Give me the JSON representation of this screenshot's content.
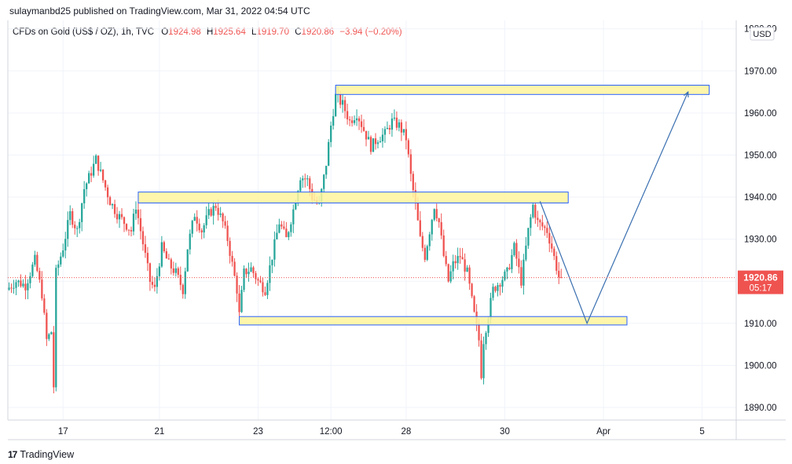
{
  "header": {
    "publisher": "sulaymanbd25 published on TradingView.com, Mar 31, 2022 04:54 UTC",
    "symbol": "CFDs on Gold (US$ / OZ), 1h, TVC",
    "ohlc": [
      {
        "key": "O",
        "value": "1924.98"
      },
      {
        "key": "H",
        "value": "1925.64"
      },
      {
        "key": "L",
        "value": "1919.70"
      },
      {
        "key": "C",
        "value": "1920.86"
      }
    ],
    "change": "−3.94 (−0.20%)"
  },
  "price_axis": {
    "currency": "USD",
    "current_price": "1920.86",
    "countdown": "05:17"
  },
  "footer": {
    "logo_text": "TradingView",
    "logo_mark": "17"
  },
  "colors": {
    "up": "#26a69a",
    "down": "#ef5350",
    "zone_fill": "#fff59d",
    "zone_stroke": "#2962ff",
    "projection": "#3a6fb0",
    "grid": "#f0f3fa"
  },
  "chart_data": {
    "type": "candlestick",
    "title": "",
    "xlabel": "",
    "ylabel": "",
    "ylim": [
      1887,
      1982
    ],
    "y_ticks": [
      1890,
      1900,
      1910,
      1920,
      1930,
      1940,
      1950,
      1960,
      1970,
      1980
    ],
    "y_tick_labels": [
      "1890.00",
      "1900.00",
      "1910.00",
      "1920.00",
      "1930.00",
      "1940.00",
      "1950.00",
      "1960.00",
      "1970.00",
      "1980.00"
    ],
    "x_ticks": [
      {
        "label": "17",
        "bar": 23
      },
      {
        "label": "21",
        "bar": 64
      },
      {
        "label": "23",
        "bar": 106
      },
      {
        "label": "12:00",
        "bar": 137
      },
      {
        "label": "28",
        "bar": 169
      },
      {
        "label": "30",
        "bar": 211
      },
      {
        "label": "Apr",
        "bar": 253
      },
      {
        "label": "5",
        "bar": 295
      }
    ],
    "bar_count_visible": 310,
    "price_path": [
      [
        0,
        1918
      ],
      [
        4,
        1920
      ],
      [
        8,
        1919
      ],
      [
        12,
        1925
      ],
      [
        15,
        1917
      ],
      [
        17,
        1906
      ],
      [
        19,
        1908
      ],
      [
        20,
        1895
      ],
      [
        21,
        1922
      ],
      [
        24,
        1928
      ],
      [
        27,
        1936
      ],
      [
        30,
        1932
      ],
      [
        33,
        1942
      ],
      [
        36,
        1946
      ],
      [
        38,
        1949
      ],
      [
        41,
        1944
      ],
      [
        44,
        1939
      ],
      [
        47,
        1936
      ],
      [
        50,
        1934
      ],
      [
        53,
        1932
      ],
      [
        55,
        1938
      ],
      [
        57,
        1932
      ],
      [
        59,
        1926
      ],
      [
        61,
        1920
      ],
      [
        63,
        1918
      ],
      [
        66,
        1928
      ],
      [
        69,
        1924
      ],
      [
        72,
        1922
      ],
      [
        75,
        1918
      ],
      [
        77,
        1928
      ],
      [
        80,
        1936
      ],
      [
        83,
        1932
      ],
      [
        86,
        1936
      ],
      [
        89,
        1938
      ],
      [
        92,
        1934
      ],
      [
        94,
        1930
      ],
      [
        96,
        1924
      ],
      [
        98,
        1918
      ],
      [
        99,
        1912
      ],
      [
        101,
        1922
      ],
      [
        104,
        1923
      ],
      [
        107,
        1920
      ],
      [
        110,
        1918
      ],
      [
        113,
        1926
      ],
      [
        116,
        1934
      ],
      [
        119,
        1930
      ],
      [
        122,
        1937
      ],
      [
        125,
        1945
      ],
      [
        128,
        1944
      ],
      [
        130,
        1940
      ],
      [
        133,
        1938
      ],
      [
        136,
        1948
      ],
      [
        138,
        1957
      ],
      [
        140,
        1964
      ],
      [
        143,
        1962
      ],
      [
        146,
        1958
      ],
      [
        149,
        1960
      ],
      [
        152,
        1956
      ],
      [
        155,
        1952
      ],
      [
        158,
        1954
      ],
      [
        161,
        1955
      ],
      [
        164,
        1958
      ],
      [
        167,
        1957
      ],
      [
        170,
        1954
      ],
      [
        172,
        1945
      ],
      [
        174,
        1938
      ],
      [
        176,
        1930
      ],
      [
        178,
        1926
      ],
      [
        180,
        1932
      ],
      [
        182,
        1938
      ],
      [
        184,
        1934
      ],
      [
        186,
        1926
      ],
      [
        188,
        1920
      ],
      [
        190,
        1924
      ],
      [
        193,
        1926
      ],
      [
        196,
        1922
      ],
      [
        199,
        1912
      ],
      [
        201,
        1906
      ],
      [
        202,
        1898
      ],
      [
        203,
        1906
      ],
      [
        205,
        1912
      ],
      [
        207,
        1918
      ],
      [
        210,
        1920
      ],
      [
        213,
        1922
      ],
      [
        216,
        1928
      ],
      [
        219,
        1920
      ],
      [
        222,
        1932
      ],
      [
        224,
        1938
      ],
      [
        226,
        1934
      ],
      [
        228,
        1933
      ],
      [
        230,
        1932
      ],
      [
        232,
        1928
      ],
      [
        235,
        1921
      ]
    ],
    "zones": [
      {
        "x_start_bar": 139,
        "x_end_bar": 298,
        "y_low": 1964.4,
        "y_high": 1966.6
      },
      {
        "x_start_bar": 55,
        "x_end_bar": 238,
        "y_low": 1938.6,
        "y_high": 1941.2
      },
      {
        "x_start_bar": 98,
        "x_end_bar": 263,
        "y_low": 1909.6,
        "y_high": 1911.6
      }
    ],
    "projection_path": [
      [
        226,
        1939
      ],
      [
        246,
        1910
      ],
      [
        289,
        1965
      ]
    ],
    "last_price": 1920.86
  }
}
